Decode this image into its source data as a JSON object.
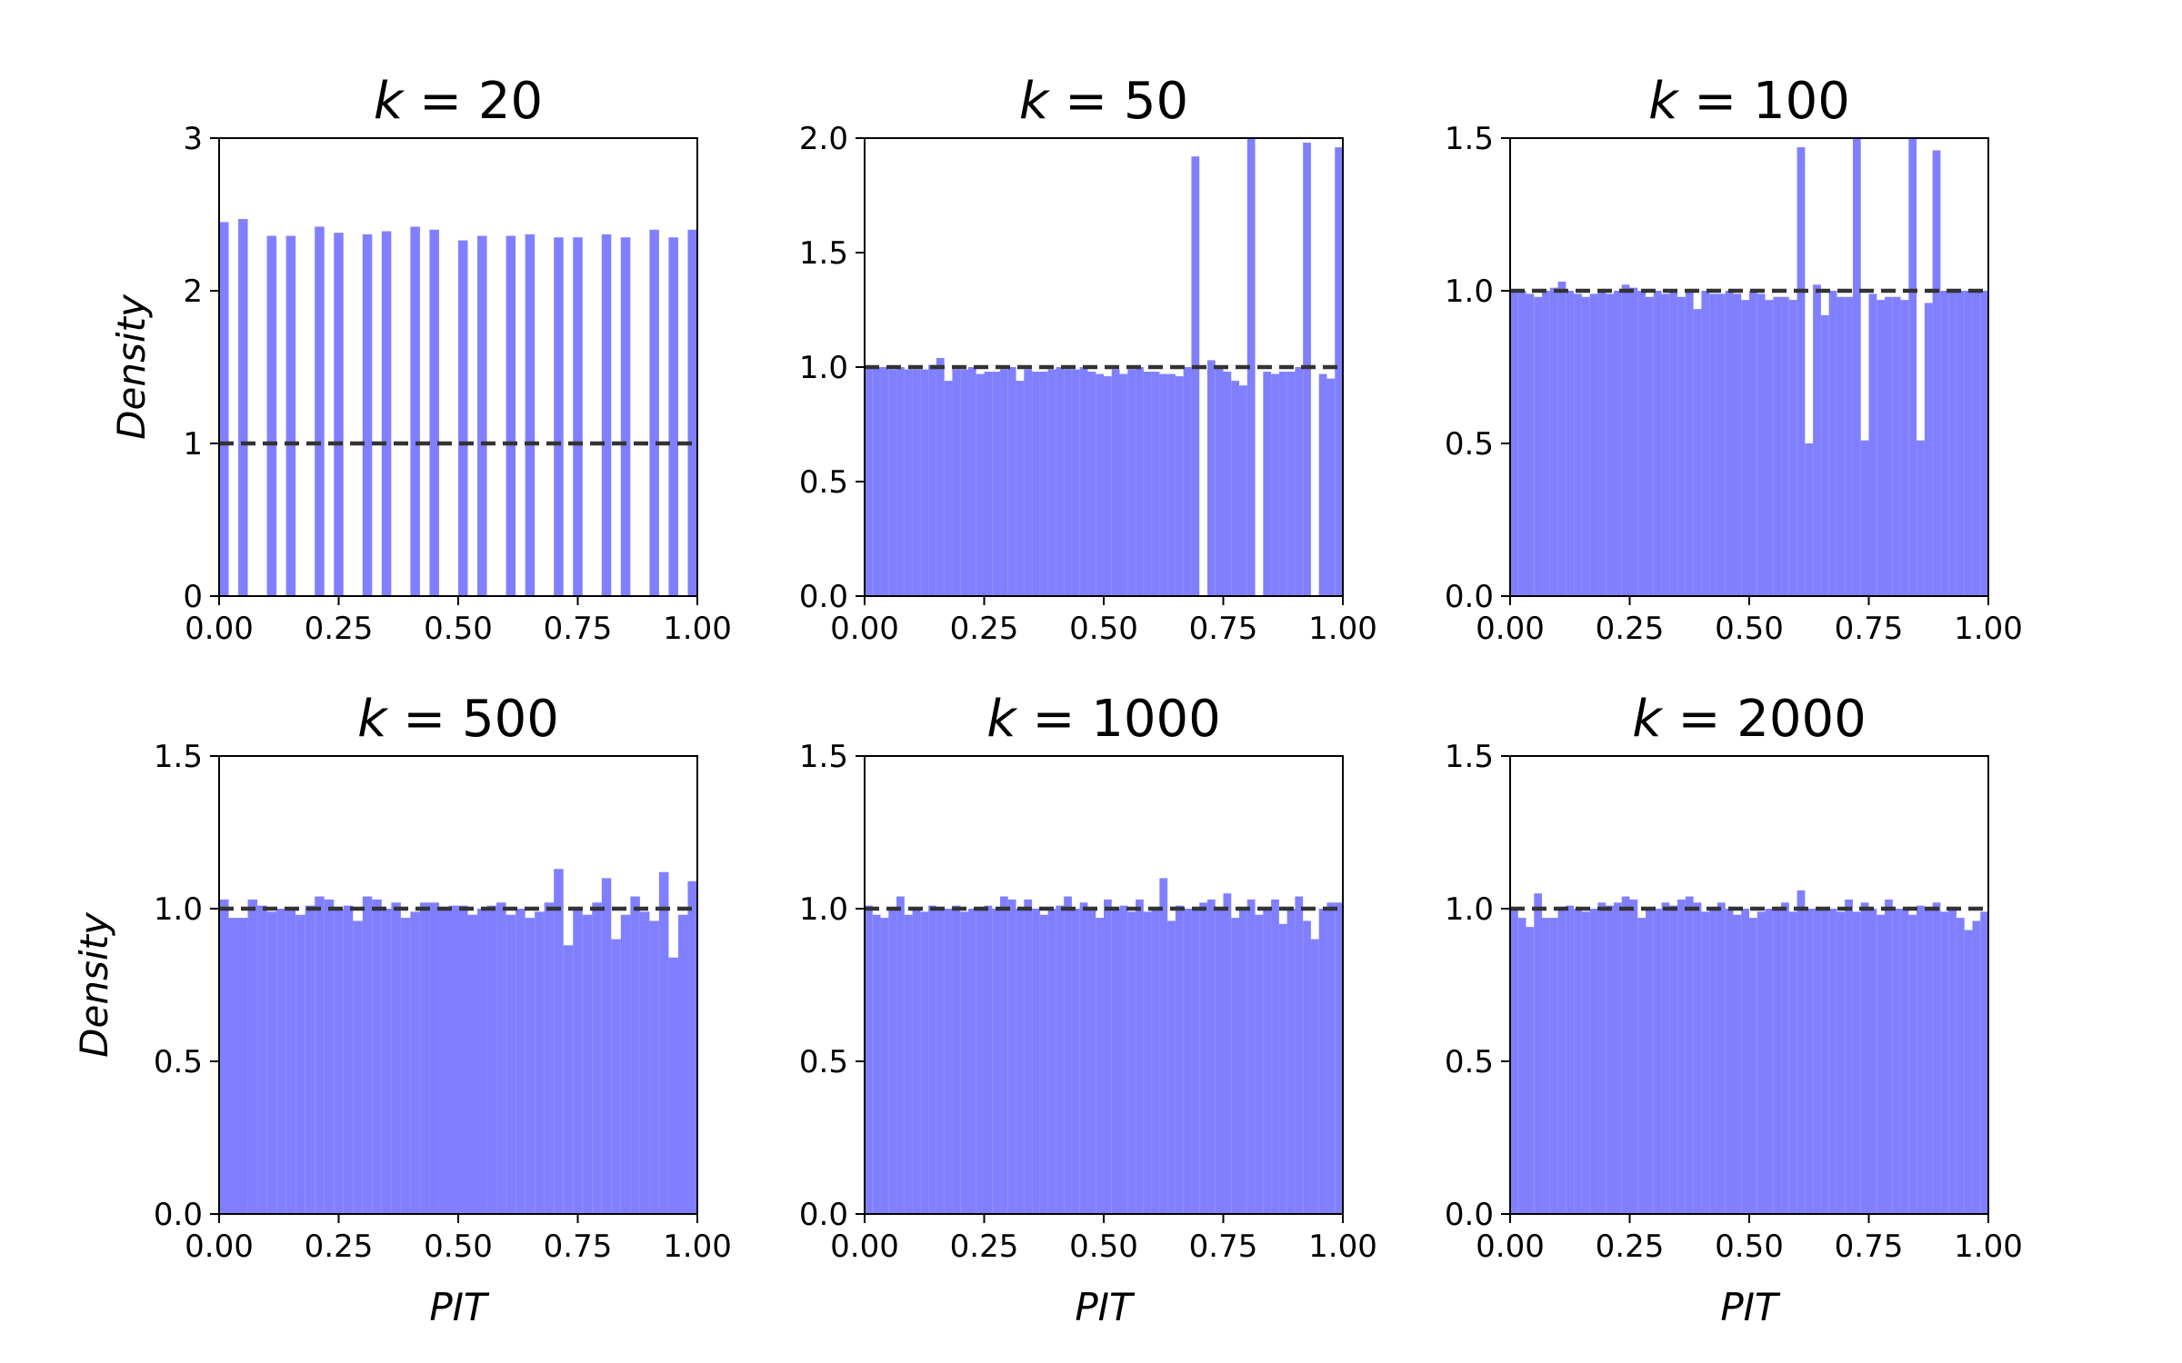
{
  "figure": {
    "bar_color": "#8080ff",
    "reference_line_color": "#333333",
    "reference_line_style": "dashed",
    "shared_xlabel": "PIT",
    "shared_ylabel": "Density"
  },
  "chart_data": [
    {
      "type": "bar",
      "title_var": "k",
      "title_val": "20",
      "xlabel": "",
      "ylabel": "Density",
      "xlim": [
        0,
        1
      ],
      "ylim": [
        0,
        3
      ],
      "xticks": [
        "0.00",
        "0.25",
        "0.50",
        "0.75",
        "1.00"
      ],
      "yticks": [
        {
          "v": 0,
          "label": "0"
        },
        {
          "v": 1,
          "label": "1"
        },
        {
          "v": 2,
          "label": "2"
        },
        {
          "v": 3,
          "label": "3"
        }
      ],
      "reference_line": 1,
      "bins": 50,
      "values": [
        2.45,
        0,
        2.47,
        0,
        0,
        2.36,
        0,
        2.36,
        0,
        0,
        2.42,
        0,
        2.38,
        0,
        0,
        2.37,
        0,
        2.39,
        0,
        0,
        2.42,
        0,
        2.4,
        0,
        0,
        2.33,
        0,
        2.36,
        0,
        0,
        2.36,
        0,
        2.37,
        0,
        0,
        2.35,
        0,
        2.35,
        0,
        0,
        2.37,
        0,
        2.35,
        0,
        0,
        2.4,
        0,
        2.35,
        0,
        2.4
      ],
      "grid": false
    },
    {
      "type": "bar",
      "title_var": "k",
      "title_val": "50",
      "xlabel": "",
      "ylabel": "",
      "xlim": [
        0,
        1
      ],
      "ylim": [
        0,
        2
      ],
      "xticks": [
        "0.00",
        "0.25",
        "0.50",
        "0.75",
        "1.00"
      ],
      "yticks": [
        {
          "v": 0,
          "label": "0.0"
        },
        {
          "v": 0.5,
          "label": "0.5"
        },
        {
          "v": 1,
          "label": "1.0"
        },
        {
          "v": 1.5,
          "label": "1.5"
        },
        {
          "v": 2,
          "label": "2.0"
        }
      ],
      "reference_line": 1,
      "bins": 60,
      "values": [
        1.0,
        1.0,
        1.0,
        0.99,
        1.0,
        0.99,
        0.99,
        0.99,
        1.01,
        1.04,
        0.94,
        0.99,
        0.99,
        1.0,
        0.97,
        0.98,
        0.98,
        0.99,
        1.0,
        0.94,
        0.99,
        0.98,
        0.98,
        0.99,
        1.0,
        0.99,
        0.99,
        1.0,
        0.98,
        0.97,
        0.96,
        0.99,
        0.97,
        0.99,
        1.0,
        0.98,
        0.98,
        0.97,
        0.97,
        0.96,
        1.0,
        1.92,
        0,
        1.03,
        1.0,
        0.98,
        0.94,
        0.92,
        2.0,
        0,
        0.98,
        0.97,
        0.98,
        0.98,
        1.0,
        1.98,
        0,
        0.97,
        0.95,
        1.96
      ],
      "grid": false
    },
    {
      "type": "bar",
      "title_var": "k",
      "title_val": "100",
      "xlabel": "",
      "ylabel": "",
      "xlim": [
        0,
        1
      ],
      "ylim": [
        0,
        1.5
      ],
      "xticks": [
        "0.00",
        "0.25",
        "0.50",
        "0.75",
        "1.00"
      ],
      "yticks": [
        {
          "v": 0,
          "label": "0.0"
        },
        {
          "v": 0.5,
          "label": "0.5"
        },
        {
          "v": 1,
          "label": "1.0"
        },
        {
          "v": 1.5,
          "label": "1.5"
        }
      ],
      "reference_line": 1,
      "bins": 60,
      "values": [
        1.0,
        1.0,
        0.99,
        0.98,
        1.0,
        1.01,
        1.03,
        1.0,
        0.99,
        0.98,
        0.99,
        1.0,
        0.99,
        1.0,
        1.02,
        1.01,
        1.0,
        0.98,
        1.0,
        0.99,
        1.0,
        0.98,
        1.0,
        0.94,
        1.0,
        0.99,
        0.99,
        1.0,
        0.99,
        0.97,
        1.0,
        0.99,
        0.97,
        0.98,
        0.98,
        0.97,
        1.47,
        0.5,
        1.02,
        0.92,
        1.0,
        0.98,
        0.98,
        1.5,
        0.51,
        0.99,
        0.97,
        0.98,
        0.98,
        0.97,
        1.5,
        0.51,
        0.96,
        1.46,
        1.0,
        1.0,
        1.0,
        1.0,
        1.0,
        1.0
      ],
      "grid": false
    },
    {
      "type": "bar",
      "title_var": "k",
      "title_val": "500",
      "xlabel": "PIT",
      "ylabel": "Density",
      "xlim": [
        0,
        1
      ],
      "ylim": [
        0,
        1.5
      ],
      "xticks": [
        "0.00",
        "0.25",
        "0.50",
        "0.75",
        "1.00"
      ],
      "yticks": [
        {
          "v": 0,
          "label": "0.0"
        },
        {
          "v": 0.5,
          "label": "0.5"
        },
        {
          "v": 1,
          "label": "1.0"
        },
        {
          "v": 1.5,
          "label": "1.5"
        }
      ],
      "reference_line": 1,
      "bins": 50,
      "values": [
        1.03,
        0.97,
        0.97,
        1.03,
        1.01,
        0.99,
        1.0,
        1.0,
        0.98,
        1.01,
        1.04,
        1.03,
        1.0,
        1.01,
        0.96,
        1.04,
        1.03,
        1.0,
        1.02,
        0.97,
        0.99,
        1.02,
        1.02,
        1.0,
        1.01,
        1.01,
        0.98,
        1.0,
        1.01,
        1.02,
        0.98,
        1.0,
        0.97,
        0.99,
        1.02,
        1.13,
        0.88,
        1.0,
        0.98,
        1.02,
        1.1,
        0.9,
        0.98,
        1.04,
        0.99,
        0.96,
        1.12,
        0.84,
        0.98,
        1.09
      ],
      "grid": false
    },
    {
      "type": "bar",
      "title_var": "k",
      "title_val": "1000",
      "xlabel": "PIT",
      "ylabel": "",
      "xlim": [
        0,
        1
      ],
      "ylim": [
        0,
        1.5
      ],
      "xticks": [
        "0.00",
        "0.25",
        "0.50",
        "0.75",
        "1.00"
      ],
      "yticks": [
        {
          "v": 0,
          "label": "0.0"
        },
        {
          "v": 0.5,
          "label": "0.5"
        },
        {
          "v": 1,
          "label": "1.0"
        },
        {
          "v": 1.5,
          "label": "1.5"
        }
      ],
      "reference_line": 1,
      "bins": 60,
      "values": [
        1.01,
        0.98,
        0.97,
        1.0,
        1.04,
        0.98,
        1.0,
        0.99,
        1.01,
        1.0,
        1.0,
        1.01,
        0.99,
        1.0,
        1.0,
        1.01,
        1.0,
        1.04,
        1.03,
        1.0,
        1.03,
        1.0,
        0.98,
        1.0,
        1.01,
        1.04,
        1.0,
        1.02,
        1.0,
        0.97,
        1.03,
        1.0,
        1.01,
        0.99,
        1.03,
        0.99,
        1.0,
        1.1,
        0.96,
        1.01,
        1.0,
        1.0,
        1.02,
        1.03,
        1.0,
        1.05,
        0.97,
        1.0,
        1.03,
        0.98,
        1.0,
        1.03,
        0.95,
        1.0,
        1.04,
        0.96,
        0.9,
        1.0,
        1.02,
        1.02
      ],
      "grid": false
    },
    {
      "type": "bar",
      "title_var": "k",
      "title_val": "2000",
      "xlabel": "PIT",
      "ylabel": "",
      "xlim": [
        0,
        1
      ],
      "ylim": [
        0,
        1.5
      ],
      "xticks": [
        "0.00",
        "0.25",
        "0.50",
        "0.75",
        "1.00"
      ],
      "yticks": [
        {
          "v": 0,
          "label": "0.0"
        },
        {
          "v": 0.5,
          "label": "0.5"
        },
        {
          "v": 1,
          "label": "1.0"
        },
        {
          "v": 1.5,
          "label": "1.5"
        }
      ],
      "reference_line": 1,
      "bins": 60,
      "values": [
        1.0,
        0.97,
        0.94,
        1.05,
        0.97,
        0.97,
        1.0,
        1.01,
        1.0,
        0.99,
        1.0,
        1.02,
        1.01,
        1.02,
        1.04,
        1.03,
        0.97,
        1.0,
        1.0,
        1.02,
        1.01,
        1.03,
        1.04,
        1.02,
        0.99,
        1.0,
        1.02,
        1.0,
        0.98,
        1.0,
        0.97,
        0.99,
        1.0,
        1.0,
        1.02,
        0.99,
        1.06,
        1.0,
        1.0,
        1.0,
        1.0,
        0.99,
        1.03,
        0.99,
        1.02,
        1.0,
        0.98,
        1.03,
        1.0,
        1.0,
        0.98,
        1.01,
        1.0,
        1.02,
        0.99,
        1.0,
        0.97,
        0.93,
        0.96,
        0.99
      ],
      "grid": false
    }
  ]
}
